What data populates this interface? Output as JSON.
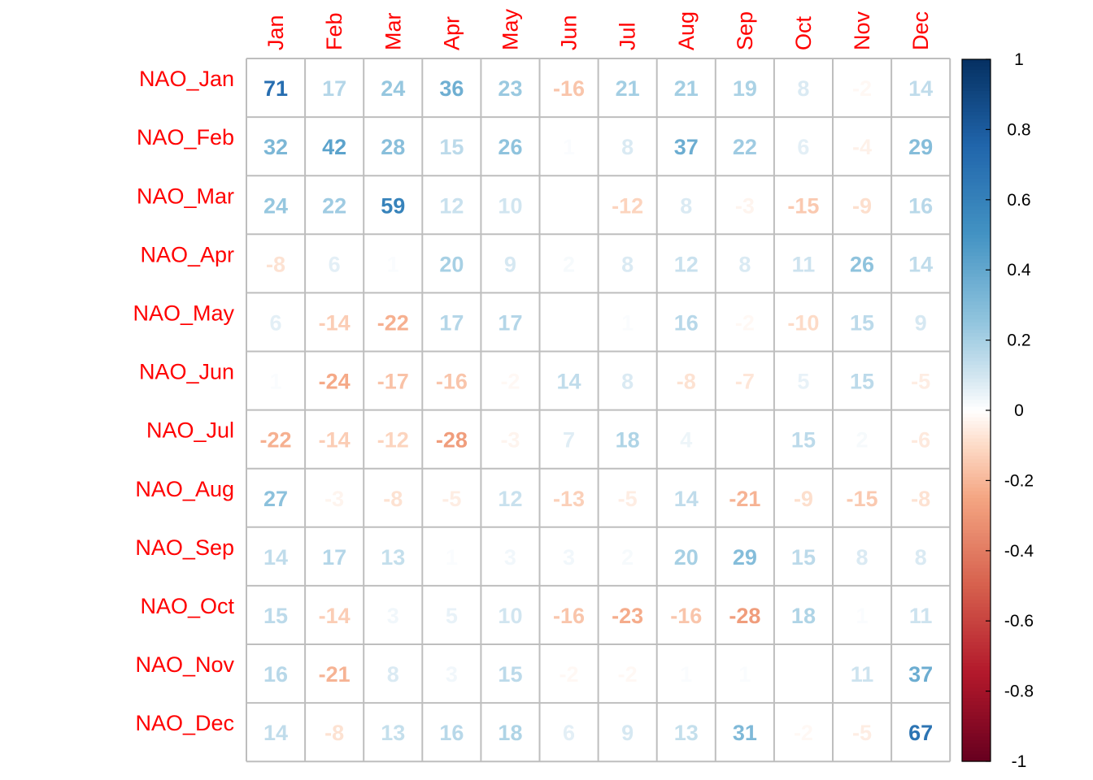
{
  "chart_data": {
    "type": "heatmap",
    "columns": [
      "Jan",
      "Feb",
      "Mar",
      "Apr",
      "May",
      "Jun",
      "Jul",
      "Aug",
      "Sep",
      "Oct",
      "Nov",
      "Dec"
    ],
    "rows": [
      "NAO_Jan",
      "NAO_Feb",
      "NAO_Mar",
      "NAO_Apr",
      "NAO_May",
      "NAO_Jun",
      "NAO_Jul",
      "NAO_Aug",
      "NAO_Sep",
      "NAO_Oct",
      "NAO_Nov",
      "NAO_Dec"
    ],
    "values": [
      [
        71,
        17,
        24,
        36,
        23,
        -16,
        21,
        21,
        19,
        8,
        -2,
        14
      ],
      [
        32,
        42,
        28,
        15,
        26,
        1,
        8,
        37,
        22,
        6,
        -4,
        29
      ],
      [
        24,
        22,
        59,
        12,
        10,
        0,
        -12,
        8,
        -3,
        -15,
        -9,
        16
      ],
      [
        -8,
        6,
        1,
        20,
        9,
        2,
        8,
        12,
        8,
        11,
        26,
        14
      ],
      [
        6,
        -14,
        -22,
        17,
        17,
        0,
        1,
        16,
        -2,
        -10,
        15,
        9
      ],
      [
        1,
        -24,
        -17,
        -16,
        -2,
        14,
        8,
        -8,
        -7,
        5,
        15,
        -5
      ],
      [
        -22,
        -14,
        -12,
        -28,
        -3,
        7,
        18,
        4,
        0,
        15,
        2,
        -6
      ],
      [
        27,
        -3,
        -8,
        -5,
        12,
        -13,
        -5,
        14,
        -21,
        -9,
        -15,
        -8
      ],
      [
        14,
        17,
        13,
        1,
        3,
        3,
        2,
        20,
        29,
        15,
        8,
        8
      ],
      [
        15,
        -14,
        3,
        5,
        10,
        -16,
        -23,
        -16,
        -28,
        18,
        1,
        11
      ],
      [
        16,
        -21,
        8,
        3,
        15,
        -2,
        -2,
        1,
        1,
        0,
        11,
        37
      ],
      [
        14,
        -8,
        13,
        16,
        18,
        6,
        9,
        13,
        31,
        -2,
        -5,
        67
      ]
    ],
    "value_scale": 100,
    "colorbar": {
      "range": [
        -1,
        1
      ],
      "ticks": [
        "1",
        "0.8",
        "0.6",
        "0.4",
        "0.2",
        "0",
        "-0.2",
        "-0.4",
        "-0.6",
        "-0.8",
        "-1"
      ]
    },
    "colors": {
      "negative_strong": "#67001f",
      "neutral": "#ffffff",
      "positive_strong": "#053061",
      "label_color": "#ff0000",
      "grid_color": "#bebebe"
    }
  }
}
